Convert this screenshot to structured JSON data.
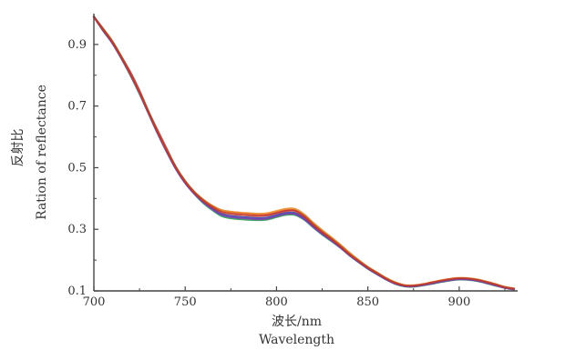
{
  "chart_data": {
    "type": "line",
    "xlabel_cn": "波长/nm",
    "xlabel_en": "Wavelength",
    "ylabel_cn": "反射比",
    "ylabel_en": "Ration of reflectance",
    "xlim": [
      700,
      932
    ],
    "ylim": [
      0.1,
      1.0
    ],
    "x_ticks": [
      700,
      750,
      800,
      850,
      900
    ],
    "x_tick_labels": [
      "700",
      "750",
      "800",
      "850",
      "900"
    ],
    "y_ticks": [
      0.1,
      0.3,
      0.5,
      0.7,
      0.9
    ],
    "y_tick_labels": [
      "0.1",
      "0.3",
      "0.5",
      "0.7",
      "0.9"
    ],
    "grid": false,
    "legend": false,
    "x": [
      700,
      705,
      710,
      715,
      720,
      725,
      730,
      735,
      740,
      745,
      750,
      755,
      760,
      765,
      770,
      775,
      780,
      785,
      790,
      795,
      800,
      805,
      810,
      815,
      820,
      825,
      830,
      835,
      840,
      845,
      850,
      855,
      860,
      865,
      870,
      875,
      880,
      885,
      890,
      895,
      900,
      905,
      910,
      915,
      920,
      925,
      930
    ],
    "series": [
      {
        "color": "#e0206a",
        "values": [
          0.99,
          0.95,
          0.91,
          0.86,
          0.81,
          0.75,
          0.68,
          0.62,
          0.56,
          0.5,
          0.455,
          0.42,
          0.395,
          0.375,
          0.36,
          0.355,
          0.352,
          0.35,
          0.347,
          0.348,
          0.355,
          0.362,
          0.362,
          0.345,
          0.318,
          0.293,
          0.27,
          0.246,
          0.22,
          0.197,
          0.176,
          0.158,
          0.14,
          0.126,
          0.117,
          0.116,
          0.12,
          0.126,
          0.132,
          0.137,
          0.14,
          0.139,
          0.135,
          0.128,
          0.12,
          0.112,
          0.107
        ]
      },
      {
        "color": "#1e9a4a",
        "values": [
          0.99,
          0.945,
          0.905,
          0.855,
          0.8,
          0.74,
          0.675,
          0.61,
          0.55,
          0.495,
          0.45,
          0.415,
          0.385,
          0.362,
          0.343,
          0.336,
          0.333,
          0.331,
          0.33,
          0.332,
          0.34,
          0.347,
          0.347,
          0.332,
          0.307,
          0.283,
          0.262,
          0.24,
          0.215,
          0.193,
          0.172,
          0.154,
          0.137,
          0.123,
          0.115,
          0.114,
          0.118,
          0.123,
          0.129,
          0.134,
          0.137,
          0.136,
          0.132,
          0.125,
          0.117,
          0.11,
          0.105
        ]
      },
      {
        "color": "#2b3fae",
        "values": [
          0.99,
          0.948,
          0.908,
          0.858,
          0.805,
          0.745,
          0.678,
          0.614,
          0.553,
          0.497,
          0.452,
          0.417,
          0.39,
          0.368,
          0.35,
          0.343,
          0.34,
          0.338,
          0.336,
          0.338,
          0.346,
          0.353,
          0.353,
          0.337,
          0.311,
          0.287,
          0.265,
          0.242,
          0.217,
          0.195,
          0.174,
          0.156,
          0.138,
          0.124,
          0.116,
          0.115,
          0.119,
          0.125,
          0.131,
          0.136,
          0.139,
          0.138,
          0.134,
          0.127,
          0.119,
          0.111,
          0.106
        ]
      },
      {
        "color": "#e98a1c",
        "values": [
          0.99,
          0.952,
          0.912,
          0.862,
          0.808,
          0.748,
          0.682,
          0.618,
          0.558,
          0.502,
          0.457,
          0.422,
          0.396,
          0.376,
          0.362,
          0.357,
          0.354,
          0.352,
          0.35,
          0.352,
          0.359,
          0.366,
          0.366,
          0.349,
          0.322,
          0.297,
          0.274,
          0.25,
          0.224,
          0.2,
          0.178,
          0.16,
          0.142,
          0.128,
          0.119,
          0.118,
          0.122,
          0.128,
          0.134,
          0.139,
          0.142,
          0.141,
          0.137,
          0.13,
          0.122,
          0.113,
          0.108
        ]
      },
      {
        "color": "#7a3fb0",
        "values": [
          0.99,
          0.947,
          0.906,
          0.857,
          0.803,
          0.743,
          0.677,
          0.612,
          0.552,
          0.496,
          0.451,
          0.416,
          0.388,
          0.365,
          0.347,
          0.34,
          0.337,
          0.335,
          0.333,
          0.335,
          0.343,
          0.35,
          0.35,
          0.334,
          0.309,
          0.285,
          0.264,
          0.241,
          0.216,
          0.194,
          0.173,
          0.155,
          0.138,
          0.124,
          0.116,
          0.115,
          0.119,
          0.124,
          0.13,
          0.135,
          0.138,
          0.137,
          0.133,
          0.126,
          0.118,
          0.11,
          0.105
        ]
      },
      {
        "color": "#c0392b",
        "values": [
          0.99,
          0.95,
          0.91,
          0.86,
          0.806,
          0.746,
          0.68,
          0.616,
          0.556,
          0.5,
          0.455,
          0.42,
          0.393,
          0.372,
          0.356,
          0.35,
          0.347,
          0.345,
          0.343,
          0.345,
          0.352,
          0.359,
          0.36,
          0.343,
          0.316,
          0.291,
          0.269,
          0.245,
          0.219,
          0.197,
          0.176,
          0.158,
          0.14,
          0.126,
          0.118,
          0.117,
          0.121,
          0.127,
          0.133,
          0.138,
          0.141,
          0.14,
          0.136,
          0.129,
          0.121,
          0.112,
          0.107
        ]
      }
    ]
  }
}
